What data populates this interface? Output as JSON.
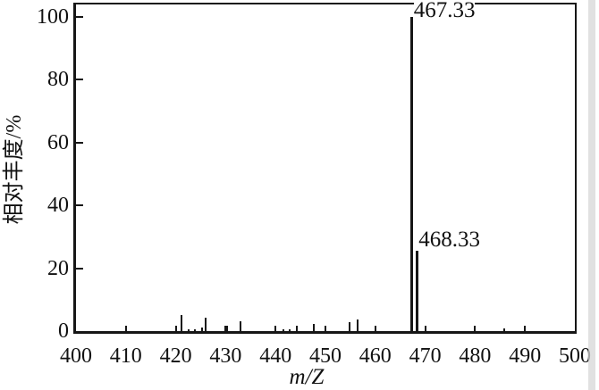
{
  "chart_data": {
    "type": "bar",
    "subtype": "mass-spectrum-stick-plot",
    "title": "",
    "xlabel": "m/Z",
    "ylabel": "相对丰度/%",
    "xlim": [
      400,
      500
    ],
    "ylim": [
      0,
      104
    ],
    "x_ticks": [
      400,
      410,
      420,
      430,
      440,
      450,
      460,
      470,
      480,
      490,
      500
    ],
    "y_ticks": [
      0,
      20,
      40,
      60,
      80,
      100
    ],
    "grid": false,
    "legend": "none",
    "axis_color": "#161616",
    "background_color": "#ffffff",
    "annotated_peaks": [
      {
        "mz": 467.33,
        "intensity": 100.0,
        "label": "467.33"
      },
      {
        "mz": 468.33,
        "intensity": 25.5,
        "label": "468.33"
      }
    ],
    "peaks": [
      {
        "mz": 421.1,
        "intensity": 5.0
      },
      {
        "mz": 422.6,
        "intensity": 0.7
      },
      {
        "mz": 423.8,
        "intensity": 0.7
      },
      {
        "mz": 425.3,
        "intensity": 1.0
      },
      {
        "mz": 425.9,
        "intensity": 4.2
      },
      {
        "mz": 430.2,
        "intensity": 1.8
      },
      {
        "mz": 432.9,
        "intensity": 3.2
      },
      {
        "mz": 441.6,
        "intensity": 0.7
      },
      {
        "mz": 442.8,
        "intensity": 0.7
      },
      {
        "mz": 444.2,
        "intensity": 1.8
      },
      {
        "mz": 447.6,
        "intensity": 2.3
      },
      {
        "mz": 454.9,
        "intensity": 2.9
      },
      {
        "mz": 456.4,
        "intensity": 3.8
      },
      {
        "mz": 467.33,
        "intensity": 100.0,
        "label": "467.33"
      },
      {
        "mz": 468.33,
        "intensity": 25.5,
        "label": "468.33"
      },
      {
        "mz": 485.8,
        "intensity": 0.9
      }
    ]
  }
}
